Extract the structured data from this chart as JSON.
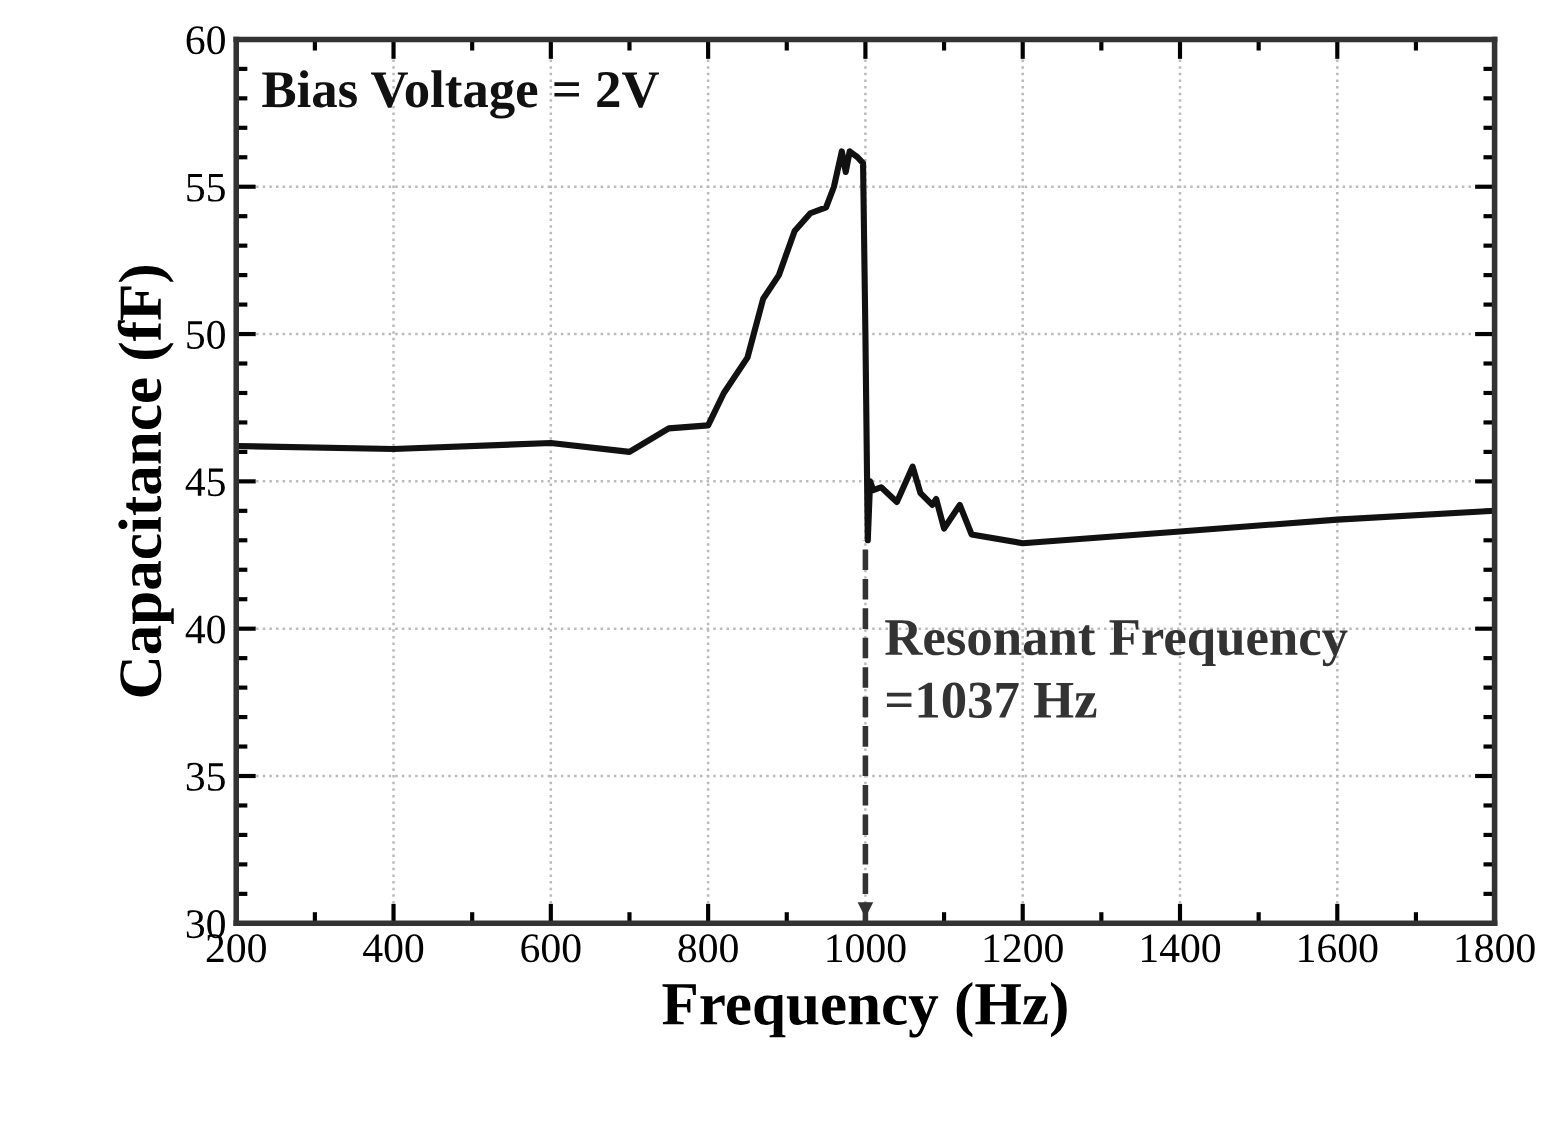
{
  "chart_data": {
    "type": "line",
    "xlabel": "Frequency (Hz)",
    "ylabel": "Capacitance (fF)",
    "series": [
      {
        "color": "#111111",
        "x": [
          200,
          400,
          600,
          700,
          750,
          800,
          820,
          850,
          870,
          890,
          910,
          930,
          950,
          960,
          970,
          975,
          980,
          990,
          997,
          1000,
          1003,
          1006,
          1010,
          1020,
          1040,
          1060,
          1070,
          1085,
          1090,
          1100,
          1120,
          1135,
          1200,
          1400,
          1600,
          1800
        ],
        "values": [
          46.2,
          46.1,
          46.3,
          46.0,
          46.8,
          46.9,
          48.0,
          49.2,
          51.2,
          52.0,
          53.5,
          54.1,
          54.3,
          55.0,
          56.2,
          55.5,
          56.2,
          56.0,
          55.8,
          50.0,
          43.0,
          45.0,
          44.7,
          44.8,
          44.3,
          45.5,
          44.6,
          44.2,
          44.4,
          43.4,
          44.2,
          43.2,
          42.9,
          43.3,
          43.7,
          44.0
        ]
      }
    ],
    "xlim": [
      200,
      1800
    ],
    "xticks": [
      200,
      400,
      600,
      800,
      1000,
      1200,
      1400,
      1600,
      1800
    ],
    "ylim": [
      30,
      60
    ],
    "yticks": [
      30,
      35,
      40,
      45,
      50,
      55,
      60
    ],
    "grid": true,
    "marker": "none",
    "line_style": "solid",
    "ref_lines": [
      {
        "axis": "x",
        "value": 1000,
        "line_style": "dashed",
        "color": "#333333"
      }
    ],
    "annotations": [
      "Bias Voltage = 2V",
      "Resonant Frequency\n=1037 Hz"
    ]
  }
}
